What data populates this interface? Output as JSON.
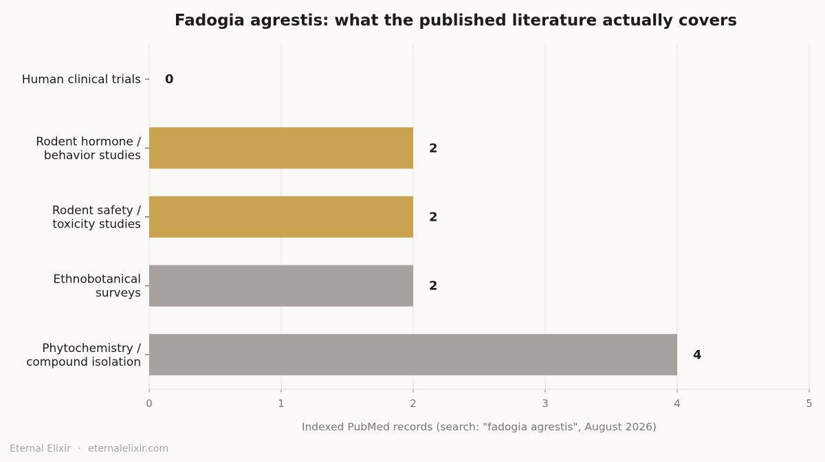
{
  "chart_data": {
    "type": "bar",
    "orientation": "horizontal",
    "title": "Fadogia agrestis: what the published literature actually covers",
    "xlabel": "Indexed PubMed records (search: \"fadogia agrestis\", August 2026)",
    "ylabel": "",
    "xlim": [
      0,
      5
    ],
    "xticks": [
      0,
      1,
      2,
      3,
      4,
      5
    ],
    "grid": "vertical",
    "categories": [
      "Human clinical trials",
      "Rodent hormone /\nbehavior studies",
      "Rodent safety /\ntoxicity studies",
      "Ethnobotanical\nsurveys",
      "Phytochemistry /\ncompound isolation"
    ],
    "values": [
      0,
      2,
      2,
      2,
      4
    ],
    "data_labels": [
      "0",
      "2",
      "2",
      "2",
      "4"
    ],
    "bar_colors": [
      "#c9a34f",
      "#c9a34f",
      "#c9a34f",
      "#a7a29d",
      "#a7a29d"
    ]
  },
  "footer": {
    "brand": "Eternal Elixir",
    "separator": "·",
    "site": "eternalelixir.com"
  }
}
